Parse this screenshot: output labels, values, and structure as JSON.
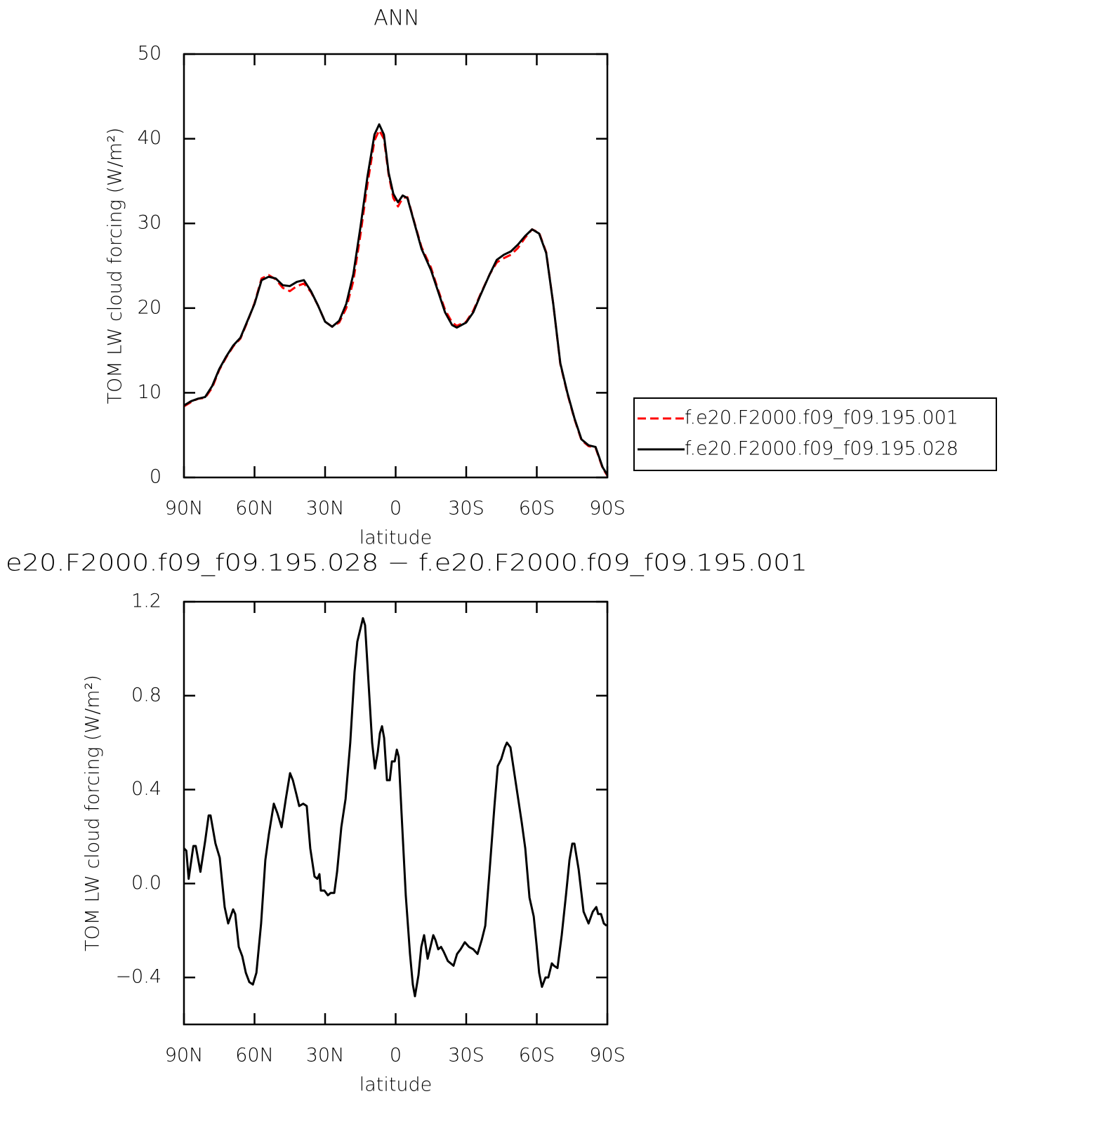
{
  "chart_data": [
    {
      "type": "line",
      "title": "ANN",
      "xlabel": "latitude",
      "ylabel": "TOM LW cloud forcing (W/m²)",
      "x": [
        90,
        87,
        84,
        81,
        78,
        75,
        72,
        69,
        66,
        63,
        60,
        57,
        54,
        51,
        48,
        45,
        42,
        39,
        36,
        33,
        30,
        27,
        24,
        21,
        18,
        15,
        12,
        9,
        7,
        5,
        3,
        1,
        -1,
        -3,
        -5,
        -8,
        -11,
        -15,
        -18,
        -21,
        -24,
        -26,
        -30,
        -33,
        -36,
        -40,
        -43,
        -46,
        -49,
        -52,
        -55,
        -58,
        -61,
        -64,
        -67,
        -70,
        -73,
        -76,
        -79,
        -82,
        -85,
        -88,
        -90
      ],
      "series": [
        {
          "name": "f.e20.F2000.f09_f09.195.001",
          "color": "#ff0000",
          "dashed": true,
          "values": [
            8.4,
            8.9,
            9.3,
            9.4,
            10.6,
            12.7,
            14.2,
            15.5,
            16.4,
            18.4,
            20.6,
            23.5,
            23.9,
            23.4,
            22.4,
            22.0,
            22.6,
            22.9,
            21.9,
            20.3,
            18.4,
            17.8,
            18.3,
            20.0,
            23.2,
            28.6,
            34.6,
            39.8,
            41.0,
            40.0,
            35.8,
            33.0,
            32.0,
            33.0,
            33.1,
            30.1,
            27.2,
            24.8,
            22.2,
            19.8,
            18.3,
            17.9,
            18.4,
            19.7,
            21.6,
            24.0,
            25.4,
            25.9,
            26.3,
            27.1,
            28.3,
            29.3,
            28.9,
            26.6,
            20.5,
            13.4,
            9.9,
            6.9,
            4.4,
            3.7,
            3.5,
            1.1,
            0.2
          ]
        },
        {
          "name": "f.e20.F2000.f09_f09.195.028",
          "color": "#000000",
          "dashed": false,
          "values": [
            8.5,
            9.0,
            9.3,
            9.5,
            10.8,
            12.8,
            14.3,
            15.6,
            16.5,
            18.5,
            20.5,
            23.3,
            23.7,
            23.5,
            22.7,
            22.6,
            23.1,
            23.3,
            22.0,
            20.3,
            18.4,
            17.8,
            18.5,
            20.5,
            24.0,
            29.5,
            35.5,
            40.5,
            41.7,
            40.5,
            36.0,
            33.5,
            32.5,
            33.3,
            33.0,
            30.0,
            27.0,
            24.5,
            22.0,
            19.5,
            18.0,
            17.7,
            18.3,
            19.5,
            21.5,
            24.0,
            25.7,
            26.3,
            26.7,
            27.5,
            28.5,
            29.3,
            28.8,
            26.5,
            20.5,
            13.5,
            10.0,
            7.0,
            4.5,
            3.8,
            3.6,
            1.2,
            0.3
          ]
        }
      ],
      "xlim": [
        90,
        -90
      ],
      "xticks": [
        {
          "value": 90,
          "label": "90N"
        },
        {
          "value": 60,
          "label": "60N"
        },
        {
          "value": 30,
          "label": "30N"
        },
        0,
        {
          "value": -30,
          "label": "30S"
        },
        {
          "value": -60,
          "label": "60S"
        },
        {
          "value": -90,
          "label": "90S"
        }
      ],
      "ylim": [
        0,
        50
      ],
      "yticks": [
        0,
        10,
        20,
        30,
        40,
        50
      ],
      "legend": "right"
    },
    {
      "type": "line",
      "title": "e20.F2000.f09_f09.195.028 − f.e20.F2000.f09_f09.195.001",
      "xlabel": "latitude",
      "ylabel": "TOM LW cloud forcing (W/m²)",
      "x": [
        90,
        89,
        88,
        87,
        86,
        85,
        83,
        81,
        79.5,
        78.7,
        76.6,
        74.8,
        72.7,
        71.2,
        69.1,
        68.2,
        66.7,
        65.2,
        63.7,
        62.2,
        60.7,
        59.2,
        57.2,
        55.4,
        53.9,
        51.8,
        50.3,
        48.5,
        46.7,
        44.9,
        43.7,
        42.2,
        41,
        39.3,
        37.8,
        36.3,
        34.5,
        33.3,
        32.4,
        31.8,
        30.3,
        28.8,
        27.6,
        26.1,
        24.9,
        23.1,
        21.3,
        19.3,
        17.5,
        16.3,
        15.1,
        13.9,
        13,
        11.5,
        10,
        8.8,
        7.6,
        6.7,
        5.8,
        4.9,
        3.7,
        2.5,
        1.6,
        0.4,
        -0.5,
        -1.3,
        -2.5,
        -4.3,
        -6.1,
        -7.3,
        -8.2,
        -9.7,
        -10.9,
        -12.1,
        -13.6,
        -14.8,
        -16,
        -16.9,
        -18.1,
        -19.3,
        -20.4,
        -22.2,
        -24.6,
        -26.1,
        -27.6,
        -29.4,
        -31.2,
        -33,
        -34.8,
        -36.6,
        -38.1,
        -39.9,
        -42,
        -43.4,
        -44.9,
        -46.4,
        -47.3,
        -48.8,
        -50.3,
        -51.8,
        -53.6,
        -55.1,
        -56.9,
        -58.7,
        -59.9,
        -61,
        -62.2,
        -63.7,
        -64.9,
        -66.4,
        -67.3,
        -68.8,
        -69.7,
        -70.6,
        -72.4,
        -73.9,
        -75.1,
        -76,
        -77.8,
        -79.9,
        -82,
        -83.8,
        -85.3,
        -86.1,
        -87.3,
        -88.5,
        -89.7
      ],
      "series": [
        {
          "color": "#000000",
          "dashed": false,
          "values": [
            0.15,
            0.14,
            0.02,
            0.09,
            0.16,
            0.16,
            0.05,
            0.18,
            0.29,
            0.29,
            0.17,
            0.11,
            -0.1,
            -0.17,
            -0.11,
            -0.13,
            -0.27,
            -0.31,
            -0.38,
            -0.42,
            -0.43,
            -0.38,
            -0.17,
            0.1,
            0.21,
            0.34,
            0.3,
            0.24,
            0.36,
            0.47,
            0.44,
            0.38,
            0.33,
            0.34,
            0.33,
            0.15,
            0.03,
            0.02,
            0.04,
            -0.03,
            -0.03,
            -0.05,
            -0.04,
            -0.04,
            0.05,
            0.24,
            0.36,
            0.6,
            0.9,
            1.03,
            1.08,
            1.13,
            1.1,
            0.85,
            0.6,
            0.49,
            0.56,
            0.64,
            0.67,
            0.62,
            0.44,
            0.44,
            0.52,
            0.52,
            0.57,
            0.54,
            0.3,
            -0.05,
            -0.3,
            -0.43,
            -0.48,
            -0.39,
            -0.27,
            -0.22,
            -0.32,
            -0.27,
            -0.22,
            -0.24,
            -0.28,
            -0.27,
            -0.29,
            -0.33,
            -0.35,
            -0.3,
            -0.28,
            -0.25,
            -0.27,
            -0.28,
            -0.3,
            -0.24,
            -0.18,
            0.05,
            0.33,
            0.5,
            0.53,
            0.58,
            0.6,
            0.58,
            0.48,
            0.38,
            0.26,
            0.15,
            -0.06,
            -0.14,
            -0.26,
            -0.38,
            -0.44,
            -0.4,
            -0.4,
            -0.34,
            -0.35,
            -0.36,
            -0.29,
            -0.22,
            -0.05,
            0.1,
            0.17,
            0.17,
            0.06,
            -0.12,
            -0.17,
            -0.12,
            -0.1,
            -0.13,
            -0.13,
            -0.17,
            -0.18
          ]
        }
      ],
      "xlim": [
        90,
        -90
      ],
      "xticks": [
        {
          "value": 90,
          "label": "90N"
        },
        {
          "value": 60,
          "label": "60N"
        },
        {
          "value": 30,
          "label": "30N"
        },
        0,
        {
          "value": -30,
          "label": "30S"
        },
        {
          "value": -60,
          "label": "60S"
        },
        {
          "value": -90,
          "label": "90S"
        }
      ],
      "ylim": [
        -0.6,
        1.2
      ],
      "yticks": [
        {
          "value": -0.4,
          "label": "−0.4"
        },
        {
          "value": 0,
          "label": "0.0"
        },
        0.4,
        0.8,
        1.2
      ]
    }
  ]
}
